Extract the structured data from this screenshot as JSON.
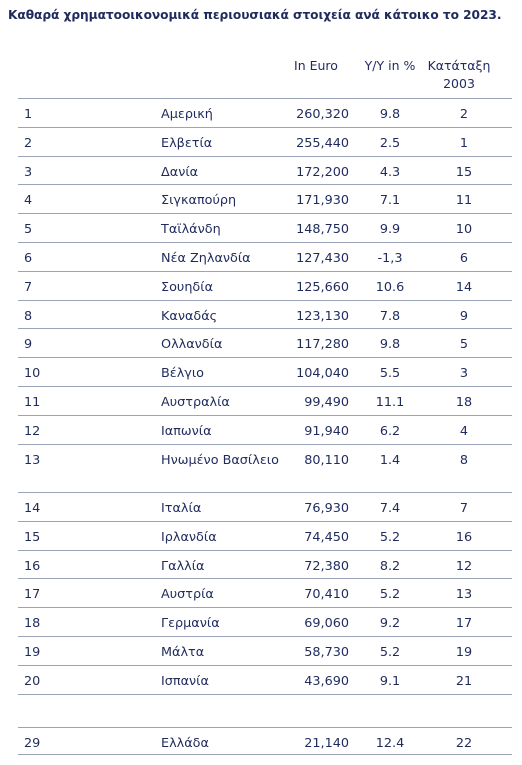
{
  "chart_data": {
    "type": "table",
    "title": "Καθαρά χρηματοοικονομικά περιουσιακά στοιχεία ανά κάτοικο το 2023.",
    "columns": [
      "",
      "",
      "In Euro",
      "Y/Y in %",
      "Κατάταξη 2003"
    ],
    "rows": [
      {
        "rank": "1",
        "country": "Αμερική",
        "euro": "260,320",
        "yy": "9.8",
        "rank2003": "2"
      },
      {
        "rank": "2",
        "country": "Ελβετία",
        "euro": "255,440",
        "yy": "2.5",
        "rank2003": "1"
      },
      {
        "rank": "3",
        "country": "Δανία",
        "euro": "172,200",
        "yy": "4.3",
        "rank2003": "15"
      },
      {
        "rank": "4",
        "country": "Σιγκαπούρη",
        "euro": "171,930",
        "yy": "7.1",
        "rank2003": "11"
      },
      {
        "rank": "5",
        "country": "Ταϊλάνδη",
        "euro": "148,750",
        "yy": "9.9",
        "rank2003": "10"
      },
      {
        "rank": "6",
        "country": "Νέα Ζηλανδία",
        "euro": "127,430",
        "yy": "-1,3",
        "rank2003": "6"
      },
      {
        "rank": "7",
        "country": "Σουηδία",
        "euro": "125,660",
        "yy": "10.6",
        "rank2003": "14"
      },
      {
        "rank": "8",
        "country": "Καναδάς",
        "euro": "123,130",
        "yy": "7.8",
        "rank2003": "9"
      },
      {
        "rank": "9",
        "country": "Ολλανδία",
        "euro": "117,280",
        "yy": "9.8",
        "rank2003": "5"
      },
      {
        "rank": "10",
        "country": "Βέλγιο",
        "euro": "104,040",
        "yy": "5.5",
        "rank2003": "3"
      },
      {
        "rank": "11",
        "country": "Αυστραλία",
        "euro": "99,490",
        "yy": "11.1",
        "rank2003": "18"
      },
      {
        "rank": "12",
        "country": "Ιαπωνία",
        "euro": "91,940",
        "yy": "6.2",
        "rank2003": "4"
      },
      {
        "rank": "13",
        "country": "Ηνωμένο Βασίλειο",
        "euro": "80,110",
        "yy": "1.4",
        "rank2003": "8"
      },
      {
        "rank": "14",
        "country": "Ιταλία",
        "euro": "76,930",
        "yy": "7.4",
        "rank2003": "7"
      },
      {
        "rank": "15",
        "country": "Ιρλανδία",
        "euro": "74,450",
        "yy": "5.2",
        "rank2003": "16"
      },
      {
        "rank": "16",
        "country": "Γαλλία",
        "euro": "72,380",
        "yy": "8.2",
        "rank2003": "12"
      },
      {
        "rank": "17",
        "country": "Αυστρία",
        "euro": "70,410",
        "yy": "5.2",
        "rank2003": "13"
      },
      {
        "rank": "18",
        "country": "Γερμανία",
        "euro": "69,060",
        "yy": "9.2",
        "rank2003": "17"
      },
      {
        "rank": "19",
        "country": "Μάλτα",
        "euro": "58,730",
        "yy": "5.2",
        "rank2003": "19"
      },
      {
        "rank": "20",
        "country": "Ισπανία",
        "euro": "43,690",
        "yy": "9.1",
        "rank2003": "21"
      },
      {
        "rank": "29",
        "country": "Ελλάδα",
        "euro": "21,140",
        "yy": "12.4",
        "rank2003": "22"
      }
    ]
  },
  "header": {
    "euro": "In Euro",
    "yy": "Y/Y in %",
    "rank2003_line1": "Κατάταξη",
    "rank2003_line2": "2003"
  },
  "colors": {
    "text": "#1f2b5c",
    "rule": "#9aa3b8"
  }
}
